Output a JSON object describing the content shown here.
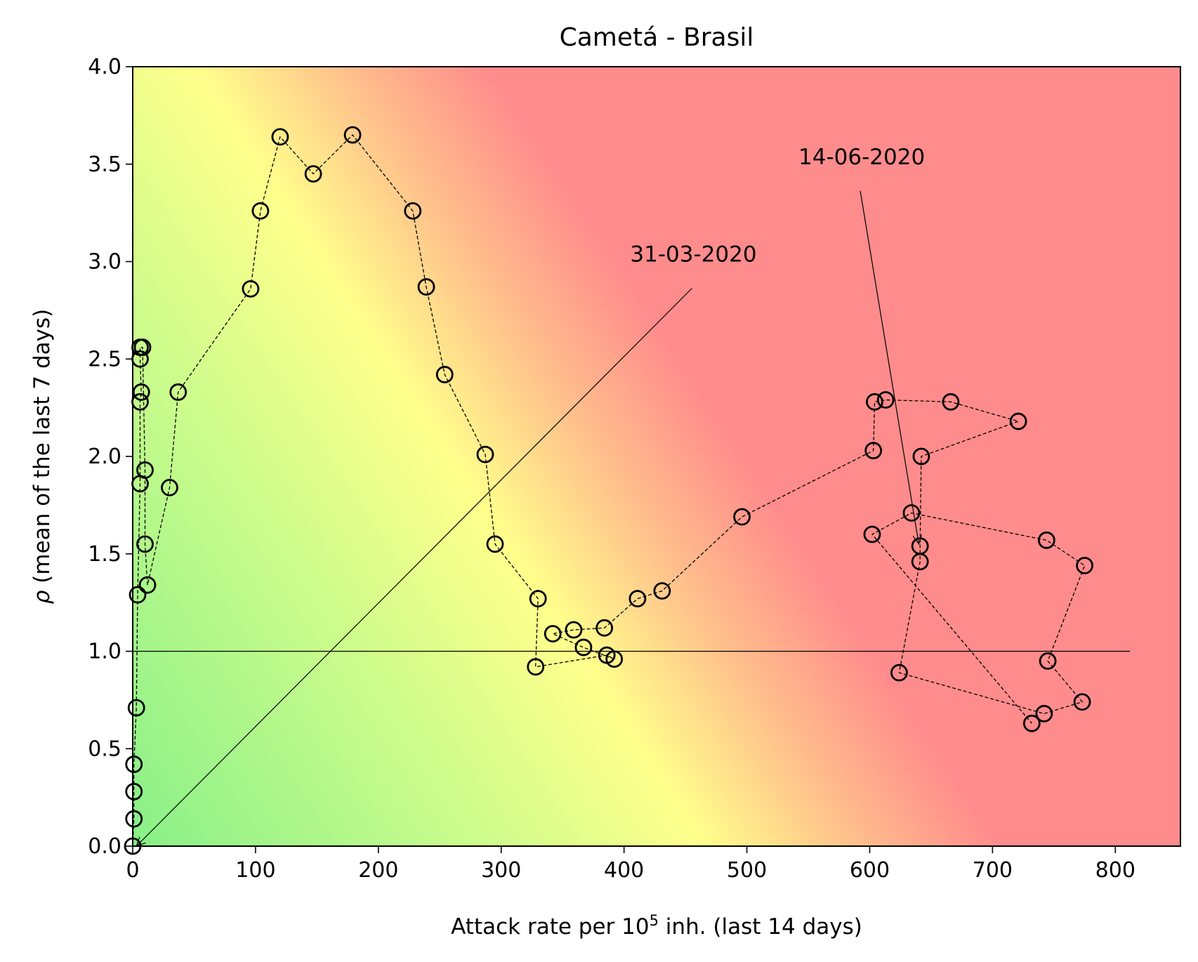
{
  "chart_data": {
    "type": "scatter",
    "title": "Cametá - Brasil",
    "xlabel_prefix": "Attack rate per 10",
    "xlabel_sup": "5",
    "xlabel_suffix": " inh. (last 14 days)",
    "ylabel_symbol": "ρ",
    "ylabel_text": " (mean of the last 7 days)",
    "xlim": [
      0,
      853
    ],
    "ylim": [
      0,
      4
    ],
    "x_ticks": [
      "0",
      "100",
      "200",
      "300",
      "400",
      "500",
      "600",
      "700",
      "800"
    ],
    "y_ticks": [
      "0.0",
      "0.5",
      "1.0",
      "1.5",
      "2.0",
      "2.5",
      "3.0",
      "3.5",
      "4.0"
    ],
    "reference_line_y": 1.0,
    "reference_line_xmax": 812,
    "background": "risk gradient: green (low attack rate, low rho) through yellow to red (high)",
    "colors": {
      "green": "#88f088",
      "yellow": "#ffff8c",
      "orange": "#ffbe8c",
      "red": "#ff8c8c"
    },
    "points": [
      [
        0,
        0
      ],
      [
        1,
        0.14
      ],
      [
        1,
        0.28
      ],
      [
        1,
        0.42
      ],
      [
        3,
        0.71
      ],
      [
        4,
        1.29
      ],
      [
        6,
        1.86
      ],
      [
        6,
        2.28
      ],
      [
        7,
        2.33
      ],
      [
        6,
        2.5
      ],
      [
        6,
        2.56
      ],
      [
        8,
        2.56
      ],
      [
        10,
        1.93
      ],
      [
        10,
        1.55
      ],
      [
        12,
        1.34
      ],
      [
        30,
        1.84
      ],
      [
        37,
        2.33
      ],
      [
        96,
        2.86
      ],
      [
        104,
        3.26
      ],
      [
        120,
        3.64
      ],
      [
        147,
        3.45
      ],
      [
        179,
        3.65
      ],
      [
        228,
        3.26
      ],
      [
        239,
        2.87
      ],
      [
        254,
        2.42
      ],
      [
        287,
        2.01
      ],
      [
        295,
        1.55
      ],
      [
        330,
        1.27
      ],
      [
        328,
        0.92
      ],
      [
        386,
        0.98
      ],
      [
        392,
        0.96
      ],
      [
        367,
        1.02
      ],
      [
        342,
        1.09
      ],
      [
        359,
        1.11
      ],
      [
        384,
        1.12
      ],
      [
        411,
        1.27
      ],
      [
        431,
        1.31
      ],
      [
        496,
        1.69
      ],
      [
        603,
        2.03
      ],
      [
        604,
        2.28
      ],
      [
        613,
        2.29
      ],
      [
        666,
        2.28
      ],
      [
        721,
        2.18
      ],
      [
        642,
        2.0
      ],
      [
        641,
        1.54
      ],
      [
        641,
        1.46
      ],
      [
        624,
        0.89
      ],
      [
        742,
        0.68
      ],
      [
        773,
        0.74
      ],
      [
        745,
        0.95
      ],
      [
        775,
        1.44
      ],
      [
        744,
        1.57
      ],
      [
        634,
        1.71
      ],
      [
        602,
        1.6
      ],
      [
        732,
        0.63
      ]
    ],
    "annotations": [
      {
        "label": "31-03-2020",
        "target": [
          3,
          0
        ],
        "text_pos": [
          405,
          3.0
        ]
      },
      {
        "label": "14-06-2020",
        "target": [
          640,
          1.55
        ],
        "text_pos": [
          542,
          3.5
        ]
      }
    ]
  }
}
